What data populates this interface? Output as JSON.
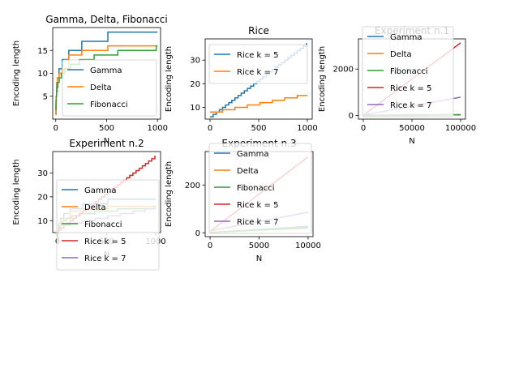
{
  "colors": {
    "gamma": "#1f77b4",
    "delta": "#ff7f0e",
    "fibonacci": "#2ca02c",
    "rice5": "#d62728",
    "rice7": "#9467bd"
  },
  "chart_data": [
    {
      "type": "line",
      "title": "Gamma, Delta, Fibonacci",
      "xlabel": "N",
      "ylabel": "Encoding length",
      "xlim": [
        -30,
        1030
      ],
      "ylim": [
        0,
        20
      ],
      "xticks": [
        0,
        500,
        1000
      ],
      "yticks": [
        5,
        10,
        15
      ],
      "grid": false,
      "legend": "lower-right",
      "series": [
        {
          "name": "Gamma",
          "color": "#1f77b4",
          "step": true,
          "x": [
            1,
            2,
            4,
            8,
            16,
            32,
            64,
            128,
            256,
            512,
            1000
          ],
          "y": [
            1,
            3,
            5,
            7,
            9,
            11,
            13,
            15,
            17,
            19,
            19
          ]
        },
        {
          "name": "Delta",
          "color": "#ff7f0e",
          "step": true,
          "x": [
            1,
            2,
            4,
            8,
            16,
            32,
            64,
            128,
            256,
            512,
            1000
          ],
          "y": [
            1,
            4,
            5,
            8,
            9,
            10,
            11,
            14,
            15,
            16,
            16
          ]
        },
        {
          "name": "Fibonacci",
          "color": "#2ca02c",
          "step": true,
          "x": [
            1,
            2,
            3,
            5,
            8,
            13,
            21,
            34,
            55,
            89,
            144,
            233,
            377,
            610,
            987,
            1000
          ],
          "y": [
            2,
            3,
            4,
            5,
            6,
            7,
            8,
            9,
            10,
            11,
            12,
            13,
            14,
            15,
            16,
            16
          ]
        }
      ]
    },
    {
      "type": "line",
      "title": "Rice",
      "xlabel": "",
      "ylabel": "Encoding length",
      "xlim": [
        -50,
        1050
      ],
      "ylim": [
        5,
        39
      ],
      "xticks": [
        0,
        500,
        1000
      ],
      "yticks": [
        10,
        20,
        30
      ],
      "grid": false,
      "legend": "upper-left",
      "series": [
        {
          "name": "Rice k = 5",
          "color": "#1f77b4",
          "step": true,
          "x": [
            0,
            32,
            64,
            96,
            128,
            160,
            192,
            224,
            256,
            288,
            320,
            352,
            384,
            416,
            448,
            480,
            512,
            544,
            576,
            608,
            640,
            672,
            704,
            736,
            768,
            800,
            832,
            864,
            896,
            928,
            960,
            992,
            1000
          ],
          "y": [
            6,
            7,
            8,
            9,
            10,
            11,
            12,
            13,
            14,
            15,
            16,
            17,
            18,
            19,
            20,
            21,
            22,
            23,
            24,
            25,
            26,
            27,
            28,
            29,
            30,
            31,
            32,
            33,
            34,
            35,
            36,
            37,
            37
          ]
        },
        {
          "name": "Rice k = 7",
          "color": "#ff7f0e",
          "step": true,
          "x": [
            0,
            128,
            256,
            384,
            512,
            640,
            768,
            896,
            1000
          ],
          "y": [
            8,
            9,
            10,
            11,
            12,
            13,
            14,
            15,
            15
          ]
        }
      ]
    },
    {
      "type": "line",
      "title": "Experiment n.1",
      "xlabel": "N",
      "ylabel": "Encoding length",
      "xlim": [
        -5000,
        105000
      ],
      "ylim": [
        -160,
        3300
      ],
      "xticks": [
        0,
        50000,
        100000
      ],
      "yticks": [
        0,
        2000
      ],
      "grid": false,
      "legend": "upper-left",
      "series": [
        {
          "name": "Gamma",
          "color": "#1f77b4",
          "x": [
            1,
            100000
          ],
          "y": [
            1,
            33
          ]
        },
        {
          "name": "Delta",
          "color": "#ff7f0e",
          "x": [
            1,
            100000
          ],
          "y": [
            1,
            27
          ]
        },
        {
          "name": "Fibonacci",
          "color": "#2ca02c",
          "x": [
            1,
            100000
          ],
          "y": [
            2,
            24
          ]
        },
        {
          "name": "Rice k = 5",
          "color": "#d62728",
          "x": [
            0,
            100000
          ],
          "y": [
            6,
            3131
          ]
        },
        {
          "name": "Rice k = 7",
          "color": "#9467bd",
          "x": [
            0,
            100000
          ],
          "y": [
            8,
            789
          ]
        }
      ]
    },
    {
      "type": "line",
      "title": "Experiment n.2",
      "xlabel": "N",
      "ylabel": "Encoding length",
      "xlim": [
        -50,
        1050
      ],
      "ylim": [
        5,
        39
      ],
      "xticks": [
        0,
        500,
        1000
      ],
      "yticks": [
        10,
        20,
        30
      ],
      "grid": false,
      "legend": "upper-left",
      "series": [
        {
          "name": "Gamma",
          "color": "#1f77b4",
          "step": true,
          "x": [
            1,
            2,
            4,
            8,
            16,
            32,
            64,
            128,
            256,
            512,
            1000
          ],
          "y": [
            1,
            3,
            5,
            7,
            9,
            11,
            13,
            15,
            17,
            19,
            19
          ]
        },
        {
          "name": "Delta",
          "color": "#ff7f0e",
          "step": true,
          "x": [
            1,
            2,
            4,
            8,
            16,
            32,
            64,
            128,
            256,
            512,
            1000
          ],
          "y": [
            1,
            4,
            5,
            8,
            9,
            10,
            11,
            14,
            15,
            16,
            16
          ]
        },
        {
          "name": "Fibonacci",
          "color": "#2ca02c",
          "step": true,
          "x": [
            1,
            2,
            3,
            5,
            8,
            13,
            21,
            34,
            55,
            89,
            144,
            233,
            377,
            610,
            987,
            1000
          ],
          "y": [
            2,
            3,
            4,
            5,
            6,
            7,
            8,
            9,
            10,
            11,
            12,
            13,
            14,
            15,
            16,
            16
          ]
        },
        {
          "name": "Rice k = 5",
          "color": "#d62728",
          "step": true,
          "x": [
            0,
            32,
            64,
            96,
            128,
            160,
            192,
            224,
            256,
            288,
            320,
            352,
            384,
            416,
            448,
            480,
            512,
            544,
            576,
            608,
            640,
            672,
            704,
            736,
            768,
            800,
            832,
            864,
            896,
            928,
            960,
            992,
            1000
          ],
          "y": [
            6,
            7,
            8,
            9,
            10,
            11,
            12,
            13,
            14,
            15,
            16,
            17,
            18,
            19,
            20,
            21,
            22,
            23,
            24,
            25,
            26,
            27,
            28,
            29,
            30,
            31,
            32,
            33,
            34,
            35,
            36,
            37,
            37
          ]
        },
        {
          "name": "Rice k = 7",
          "color": "#9467bd",
          "step": true,
          "x": [
            0,
            128,
            256,
            384,
            512,
            640,
            768,
            896,
            1000
          ],
          "y": [
            8,
            9,
            10,
            11,
            12,
            13,
            14,
            15,
            15
          ]
        }
      ]
    },
    {
      "type": "line",
      "title": "Experiment n.3",
      "xlabel": "N",
      "ylabel": "Encoding length",
      "xlim": [
        -500,
        10500
      ],
      "ylim": [
        -16,
        340
      ],
      "xticks": [
        0,
        5000,
        10000
      ],
      "yticks": [
        0,
        200
      ],
      "grid": false,
      "legend": "upper-left",
      "series": [
        {
          "name": "Gamma",
          "color": "#1f77b4",
          "x": [
            1,
            10000
          ],
          "y": [
            1,
            27
          ]
        },
        {
          "name": "Delta",
          "color": "#ff7f0e",
          "x": [
            1,
            10000
          ],
          "y": [
            1,
            22
          ]
        },
        {
          "name": "Fibonacci",
          "color": "#2ca02c",
          "x": [
            1,
            10000
          ],
          "y": [
            2,
            20
          ]
        },
        {
          "name": "Rice k = 5",
          "color": "#d62728",
          "x": [
            0,
            10000
          ],
          "y": [
            6,
            318
          ]
        },
        {
          "name": "Rice k = 7",
          "color": "#9467bd",
          "x": [
            0,
            10000
          ],
          "y": [
            8,
            86
          ]
        }
      ]
    }
  ]
}
